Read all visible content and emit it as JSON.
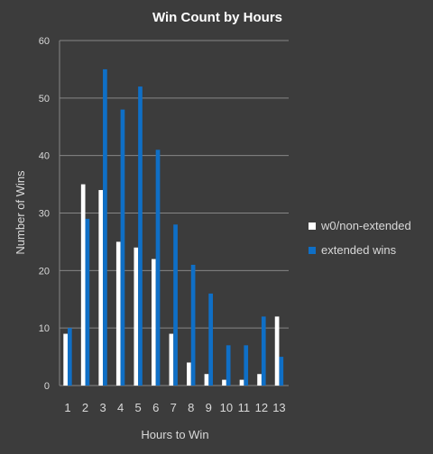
{
  "chart_data": {
    "type": "bar",
    "title": "Win Count by Hours",
    "xlabel": "Hours to Win",
    "ylabel": "Number of Wins",
    "categories": [
      "1",
      "2",
      "3",
      "4",
      "5",
      "6",
      "7",
      "8",
      "9",
      "10",
      "11",
      "12",
      "13"
    ],
    "series": [
      {
        "name": "w0/non-extended",
        "color": "#ffffff",
        "values": [
          9,
          35,
          34,
          25,
          24,
          22,
          9,
          4,
          2,
          1,
          1,
          2,
          12
        ]
      },
      {
        "name": "extended wins",
        "color": "#0f6fc6",
        "values": [
          10,
          29,
          55,
          48,
          52,
          41,
          28,
          21,
          16,
          7,
          7,
          12,
          5
        ]
      }
    ],
    "ylim": [
      0,
      60
    ],
    "yticks": [
      0,
      10,
      20,
      30,
      40,
      50,
      60
    ],
    "grid": true,
    "legend_position": "right",
    "colors": {
      "background": "#3c3c3c",
      "gridline": "#868686",
      "text": "#d9d9d9",
      "title": "#ffffff"
    }
  }
}
